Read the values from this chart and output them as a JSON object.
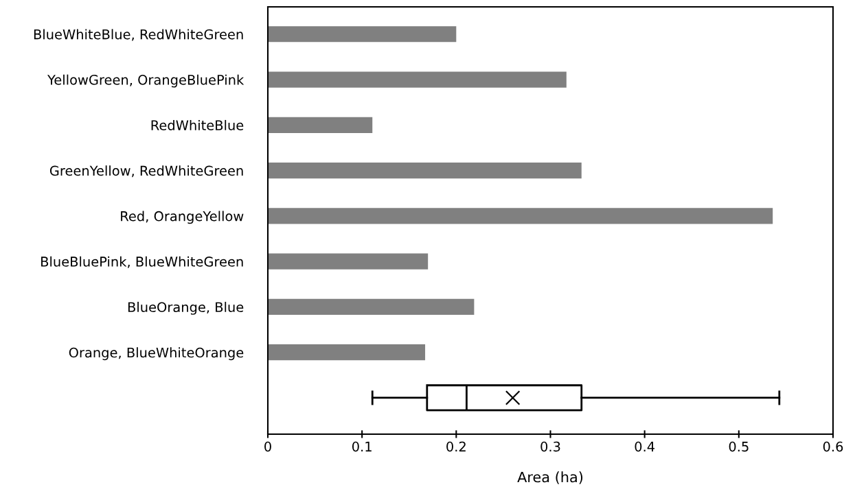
{
  "chart_data": {
    "type": "bar",
    "orientation": "horizontal",
    "xlabel": "Area (ha)",
    "categories": [
      "BlueWhiteBlue, RedWhiteGreen",
      "YellowGreen, OrangeBluePink",
      "RedWhiteBlue",
      "GreenYellow, RedWhiteGreen",
      "Red, OrangeYellow",
      "BlueBluePink, BlueWhiteGreen",
      "BlueOrange, Blue",
      "Orange, BlueWhiteOrange",
      null
    ],
    "series": [
      {
        "color": "#808080",
        "values": [
          0.2,
          0.317,
          0.111,
          0.333,
          0.536,
          0.17,
          0.219,
          0.167,
          null
        ]
      },
      {
        "type": "box",
        "color": "#000000",
        "boxes": [
          null,
          null,
          null,
          null,
          null,
          null,
          null,
          null,
          {
            "low": 0.111,
            "q1": 0.169,
            "median": 0.211,
            "q3": 0.333,
            "high": 0.543,
            "mean": 0.26
          }
        ]
      }
    ],
    "xlim": [
      0,
      0.6
    ],
    "xticks": [
      0,
      0.1,
      0.2,
      0.3,
      0.4,
      0.5,
      0.6
    ],
    "grid": false
  }
}
